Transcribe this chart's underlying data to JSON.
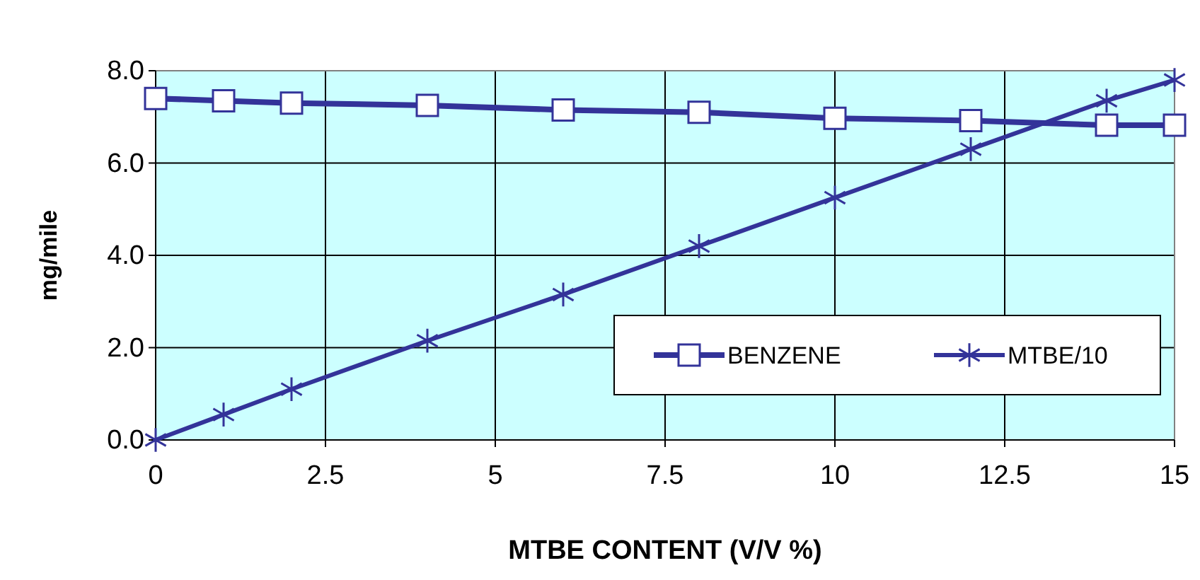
{
  "chart_data": {
    "type": "line",
    "xlabel": "MTBE CONTENT (V/V %)",
    "ylabel": "mg/mile",
    "xlim": [
      0,
      15
    ],
    "xticks": [
      0,
      2.5,
      5,
      7.5,
      10,
      12.5,
      15
    ],
    "ylim": [
      0,
      8
    ],
    "yticks": [
      {
        "value": 0,
        "label": "0.0"
      },
      {
        "value": 2,
        "label": "2.0"
      },
      {
        "value": 4,
        "label": "4.0"
      },
      {
        "value": 6,
        "label": "6.0"
      },
      {
        "value": 8,
        "label": "8.0"
      }
    ],
    "grid": true,
    "legend": "bottom right",
    "series": [
      {
        "name": "BENZENE",
        "color": "#333399",
        "marker": "square",
        "x": [
          0,
          1,
          2,
          4,
          6,
          8,
          10,
          12,
          14,
          15
        ],
        "values": [
          7.4,
          7.35,
          7.3,
          7.25,
          7.15,
          7.1,
          6.97,
          6.92,
          6.82,
          6.82
        ]
      },
      {
        "name": "MTBE/10",
        "color": "#333399",
        "marker": "cross",
        "x": [
          0,
          1,
          2,
          4,
          6,
          8,
          10,
          12,
          14,
          15
        ],
        "values": [
          0,
          0.55,
          1.1,
          2.15,
          3.15,
          4.2,
          5.25,
          6.3,
          7.35,
          7.8
        ]
      }
    ]
  }
}
